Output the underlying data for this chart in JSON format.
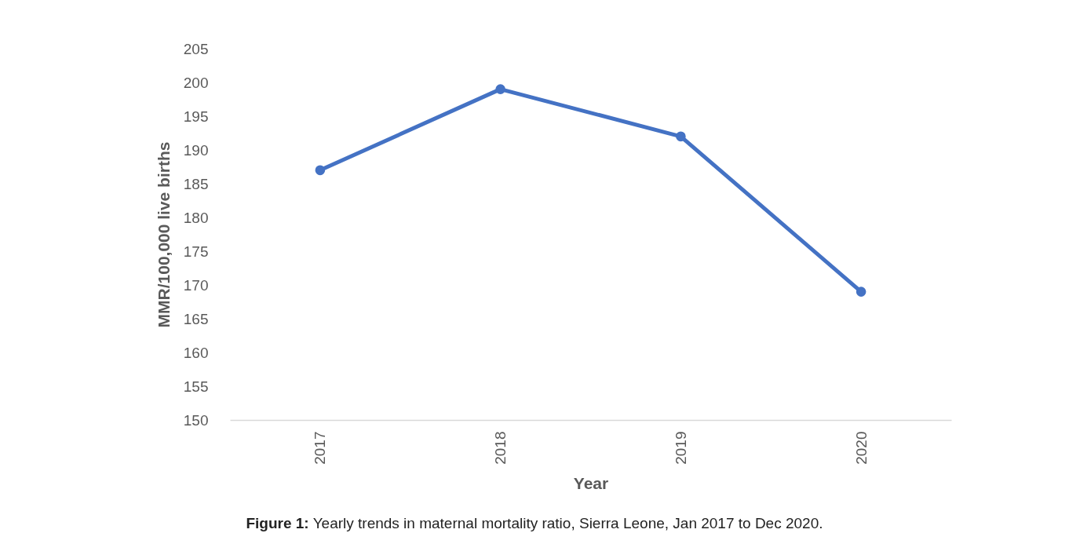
{
  "chart_data": {
    "type": "line",
    "xlabel": "Year",
    "ylabel": "MMR/100,000 live births",
    "categories": [
      "2017",
      "2018",
      "2019",
      "2020"
    ],
    "series": [
      {
        "color": "#4472c4",
        "values": [
          187,
          199,
          192,
          169
        ]
      }
    ],
    "ylim": [
      150,
      205
    ],
    "yticks": [
      150,
      155,
      160,
      165,
      170,
      175,
      180,
      185,
      190,
      195,
      200,
      205
    ],
    "grid": false,
    "legend": false,
    "marker": "circle",
    "line_style": "solid",
    "annotations": [
      "Figure 1: Yearly trends in maternal mortality ratio, Sierra Leone, Jan 2017 to Dec 2020."
    ]
  }
}
